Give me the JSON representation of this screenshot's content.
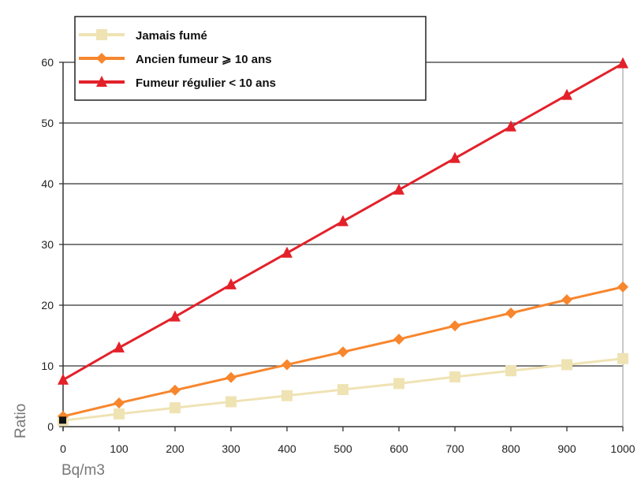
{
  "chart_data": {
    "type": "line",
    "title": "",
    "xlabel": "Bq/m3",
    "ylabel": "Ratio",
    "x": [
      0,
      100,
      200,
      300,
      400,
      500,
      600,
      700,
      800,
      900,
      1000
    ],
    "xlim": [
      0,
      1000
    ],
    "ylim": [
      0,
      60
    ],
    "xticks": [
      "0",
      "100",
      "200",
      "300",
      "400",
      "500",
      "600",
      "700",
      "800",
      "900",
      "1000"
    ],
    "yticks": [
      "0",
      "10",
      "20",
      "30",
      "40",
      "50",
      "60"
    ],
    "grid": "horizontal",
    "legend_position": "top-left",
    "series": [
      {
        "name": "Jamais fumé",
        "color": "#efe3b4",
        "marker": "square",
        "values": [
          1.0,
          2.1,
          3.1,
          4.1,
          5.1,
          6.1,
          7.1,
          8.2,
          9.2,
          10.2,
          11.2
        ]
      },
      {
        "name": "Ancien fumeur ⩾ 10 ans",
        "color": "#f7862d",
        "marker": "diamond",
        "values": [
          1.7,
          3.9,
          6.0,
          8.1,
          10.2,
          12.3,
          14.4,
          16.6,
          18.7,
          20.9,
          23.0
        ]
      },
      {
        "name": "Fumeur régulier < 10 ans",
        "color": "#e3212a",
        "marker": "triangle",
        "values": [
          7.7,
          13.0,
          18.1,
          23.4,
          28.6,
          33.8,
          39.0,
          44.2,
          49.4,
          54.6,
          59.8
        ]
      }
    ]
  }
}
